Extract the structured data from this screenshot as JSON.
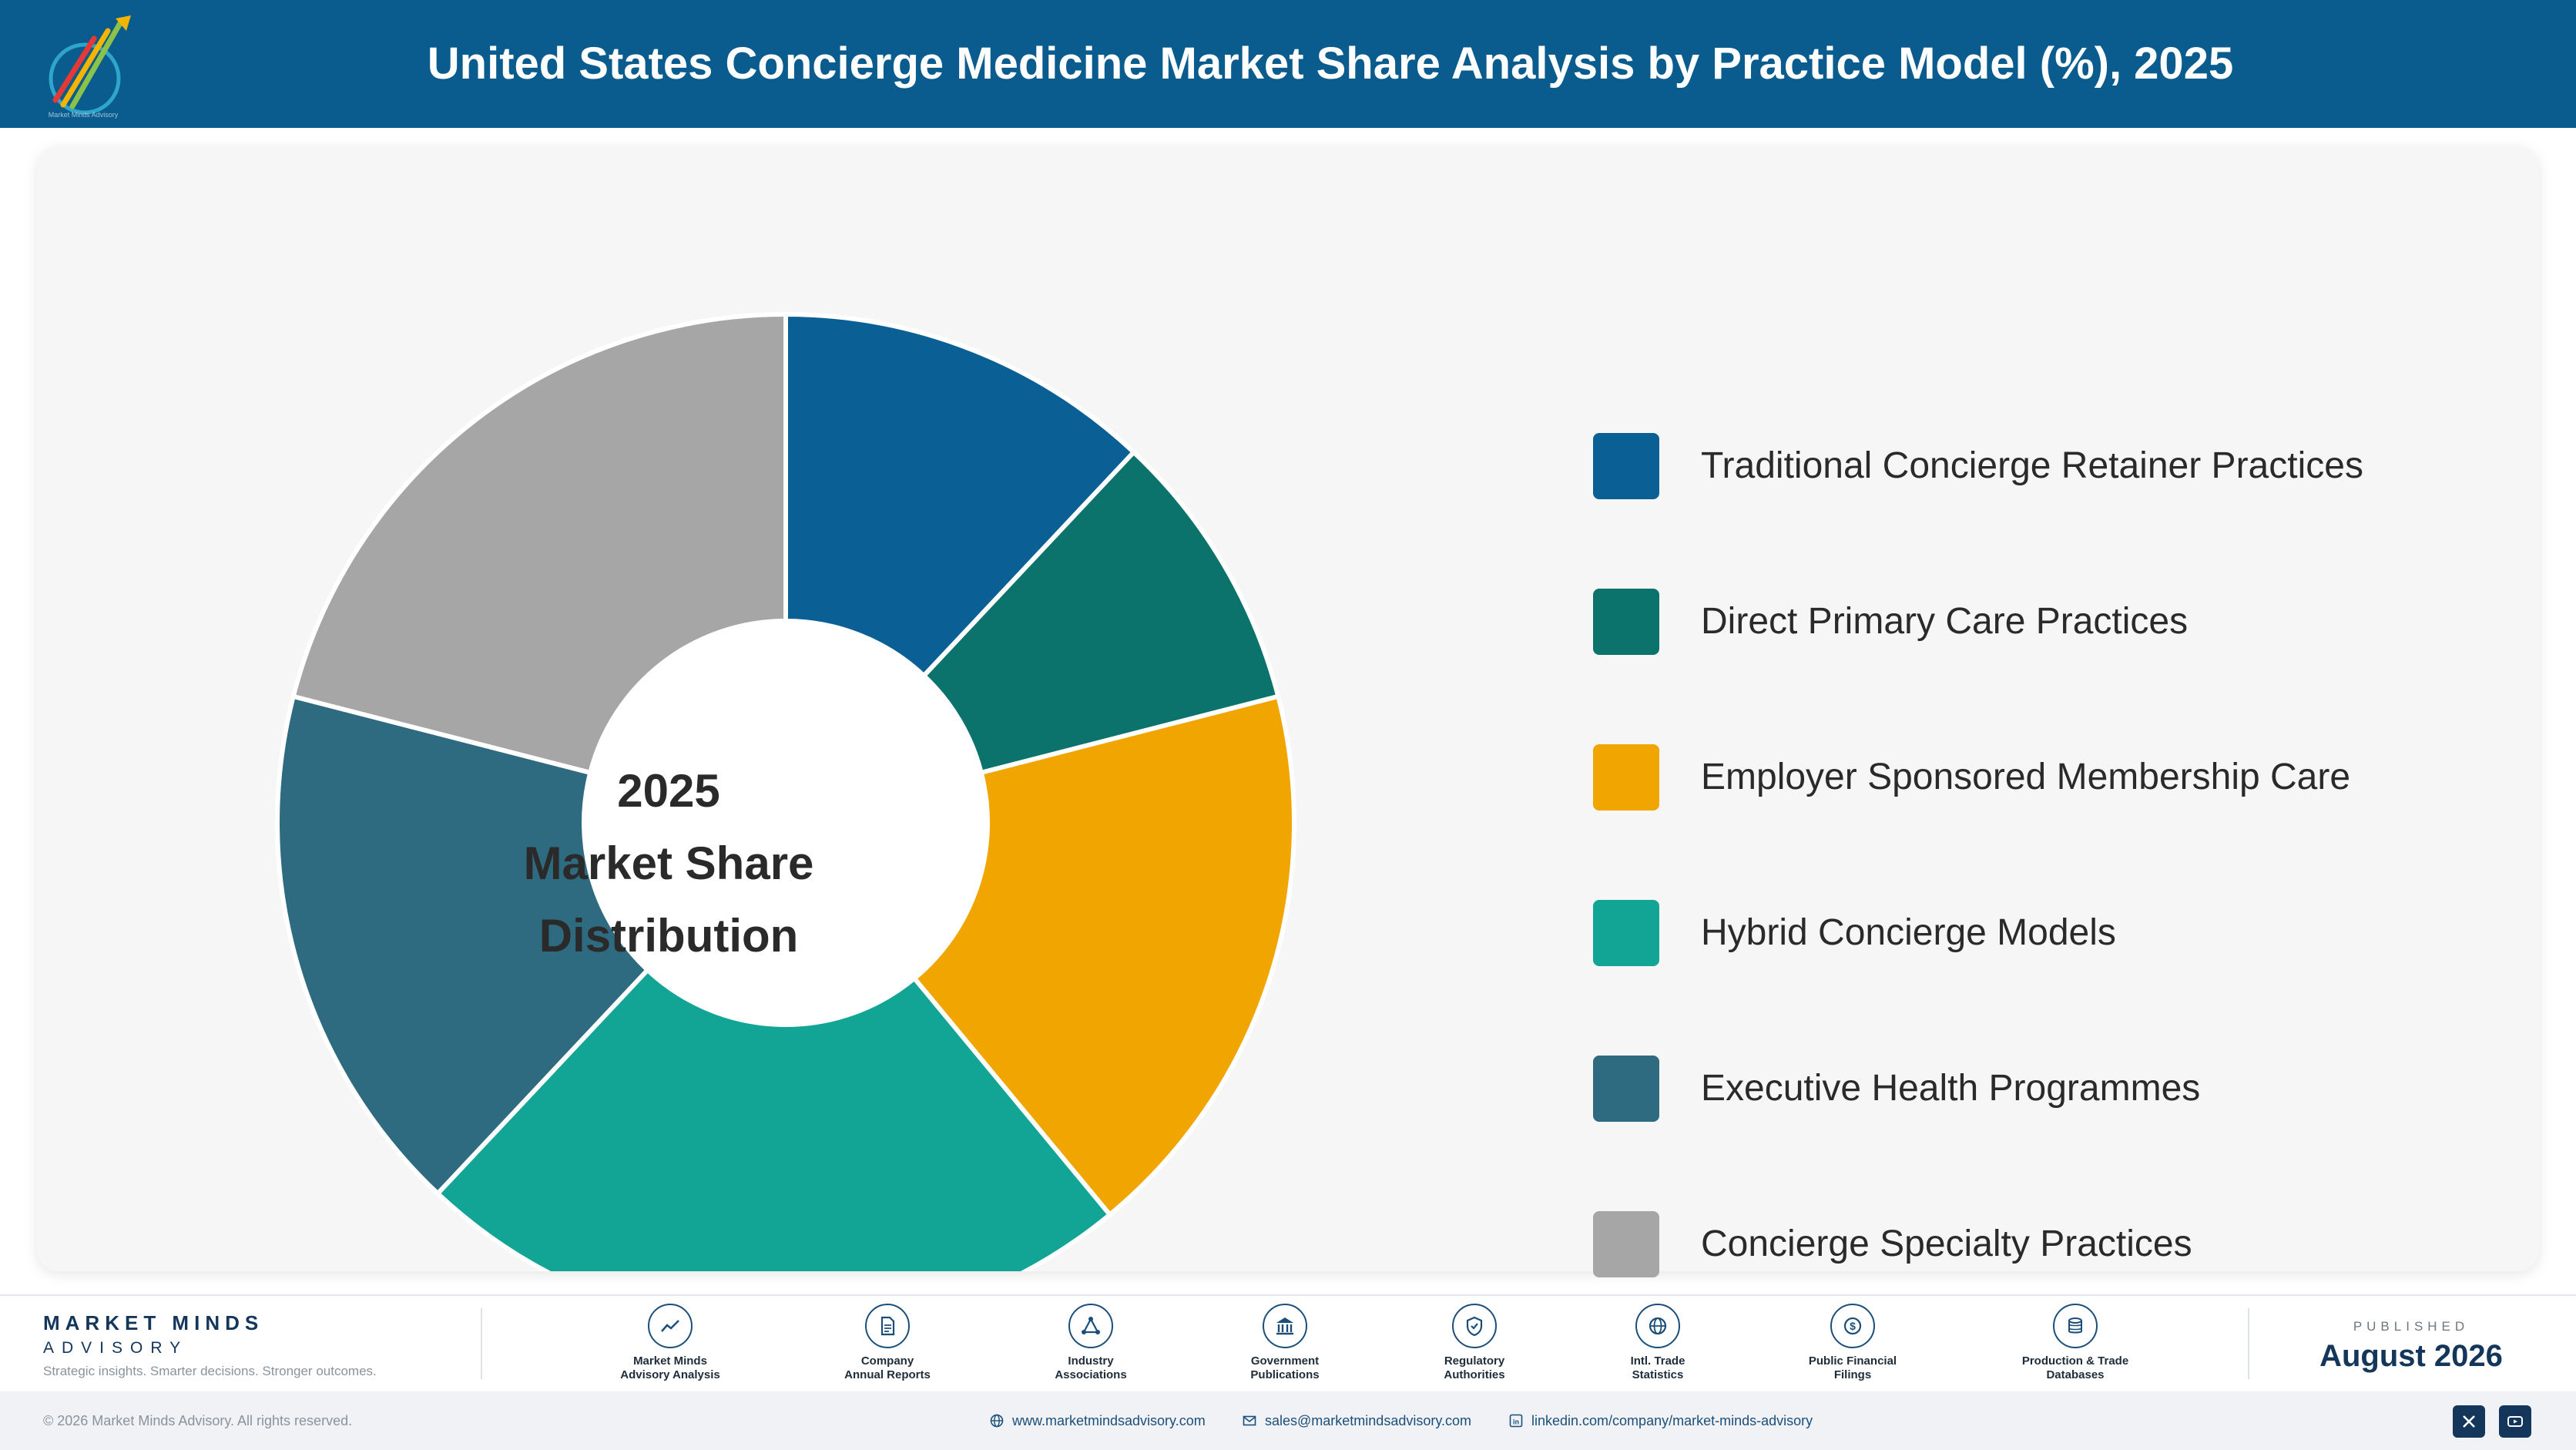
{
  "header": {
    "title": "United States Concierge Medicine Market Share Analysis by Practice Model (%), 2025",
    "logo_text": "Market Minds Advisory"
  },
  "chart_data": {
    "type": "pie",
    "variant": "donut",
    "center_label": [
      "2025",
      "Market Share",
      "Distribution"
    ],
    "categories": [
      "Traditional Concierge Retainer Practices",
      "Direct Primary Care Practices",
      "Employer Sponsored Membership Care",
      "Hybrid Concierge Models",
      "Executive Health Programmes",
      "Concierge Specialty Practices"
    ],
    "values": [
      12,
      9,
      18,
      23,
      17,
      21
    ],
    "colors": [
      "#0a5f94",
      "#0c736c",
      "#f0a500",
      "#12a596",
      "#2f6b80",
      "#a6a6a6"
    ],
    "legend_position": "right"
  },
  "footer": {
    "brand_name": "MARKET MINDS",
    "brand_sub": "ADVISORY",
    "tagline": "Strategic insights. Smarter decisions. Stronger outcomes.",
    "sources": [
      {
        "label": "Market Minds\nAdvisory Analysis",
        "icon": "trend-icon"
      },
      {
        "label": "Company\nAnnual Reports",
        "icon": "document-icon"
      },
      {
        "label": "Industry\nAssociations",
        "icon": "network-icon"
      },
      {
        "label": "Government\nPublications",
        "icon": "government-icon"
      },
      {
        "label": "Regulatory\nAuthorities",
        "icon": "shield-icon"
      },
      {
        "label": "Intl. Trade\nStatistics",
        "icon": "globe-icon"
      },
      {
        "label": "Public Financial\nFilings",
        "icon": "dollar-icon"
      },
      {
        "label": "Production & Trade\nDatabases",
        "icon": "database-icon"
      }
    ],
    "published_label": "PUBLISHED",
    "published_date": "August 2026"
  },
  "bottom_bar": {
    "copyright": "© 2026 Market Minds Advisory. All rights reserved.",
    "website": "www.marketmindsadvisory.com",
    "email": "sales@marketmindsadvisory.com",
    "linkedin": "linkedin.com/company/market-minds-advisory"
  }
}
